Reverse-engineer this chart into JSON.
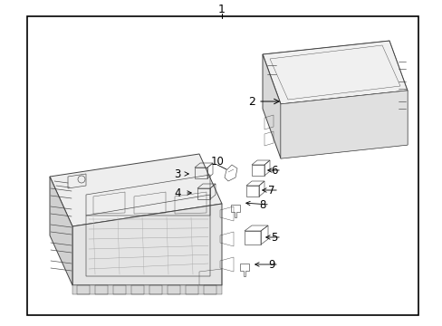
{
  "bg_color": "#ffffff",
  "border_color": "#000000",
  "line_color": "#444444",
  "text_color": "#000000",
  "fig_width": 4.89,
  "fig_height": 3.6,
  "dpi": 100,
  "lw_main": 0.7,
  "lw_detail": 0.45,
  "lw_thin": 0.3
}
